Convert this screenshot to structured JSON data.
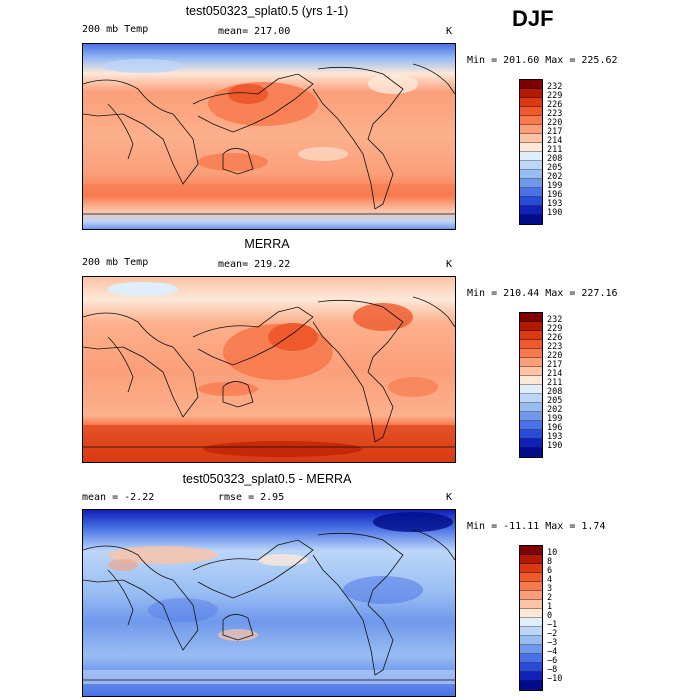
{
  "season": "DJF",
  "panels": [
    {
      "title": "test050323_splat0.5 (yrs 1-1)",
      "left_label": "200 mb Temp",
      "mid_label": "mean= 217.00",
      "units": "K",
      "minmax": "Min = 201.60 Max = 225.62",
      "colorbar": {
        "labels": [
          "232",
          "229",
          "226",
          "223",
          "220",
          "217",
          "214",
          "211",
          "208",
          "205",
          "202",
          "199",
          "196",
          "193",
          "190"
        ],
        "colors": [
          "#7f0000",
          "#b21a00",
          "#d93a12",
          "#ee5a2e",
          "#f77a4e",
          "#fb9f7a",
          "#fcc3a6",
          "#fde8d8",
          "#dfeefc",
          "#bcd6f8",
          "#98bdf3",
          "#7098ec",
          "#4a72e6",
          "#2a4bd8",
          "#1020b8",
          "#000c8a"
        ]
      }
    },
    {
      "title": "MERRA",
      "left_label": "200 mb Temp",
      "mid_label": "mean= 219.22",
      "units": "K",
      "minmax": "Min = 210.44 Max = 227.16",
      "colorbar": {
        "labels": [
          "232",
          "229",
          "226",
          "223",
          "220",
          "217",
          "214",
          "211",
          "208",
          "205",
          "202",
          "199",
          "196",
          "193",
          "190"
        ],
        "colors": [
          "#7f0000",
          "#b21a00",
          "#d93a12",
          "#ee5a2e",
          "#f77a4e",
          "#fb9f7a",
          "#fcc3a6",
          "#fde8d8",
          "#dfeefc",
          "#bcd6f8",
          "#98bdf3",
          "#7098ec",
          "#4a72e6",
          "#2a4bd8",
          "#1020b8",
          "#000c8a"
        ]
      }
    },
    {
      "title": "test050323_splat0.5 - MERRA",
      "left_label": "mean = -2.22",
      "mid_label": "rmse = 2.95",
      "units": "K",
      "minmax": "Min = -11.11 Max = 1.74",
      "colorbar": {
        "labels": [
          "10",
          "8",
          "6",
          "4",
          "3",
          "2",
          "1",
          "0",
          "−1",
          "−2",
          "−3",
          "−4",
          "−6",
          "−8",
          "−10"
        ],
        "colors": [
          "#7f0000",
          "#b21a00",
          "#d93a12",
          "#ee5a2e",
          "#f77a4e",
          "#fb9f7a",
          "#fcc3a6",
          "#fde8d8",
          "#dfeefc",
          "#bcd6f8",
          "#98bdf3",
          "#7098ec",
          "#4a72e6",
          "#2a4bd8",
          "#1020b8",
          "#000c8a"
        ]
      }
    }
  ],
  "chart_data": [
    {
      "type": "heatmap",
      "title": "test050323_splat0.5 (yrs 1-1)",
      "variable": "200 mb Temp",
      "units": "K",
      "season": "DJF",
      "mean": 217.0,
      "min": 201.6,
      "max": 225.62,
      "contour_levels": [
        190,
        193,
        196,
        199,
        202,
        205,
        208,
        211,
        214,
        217,
        220,
        223,
        226,
        229,
        232
      ]
    },
    {
      "type": "heatmap",
      "title": "MERRA",
      "variable": "200 mb Temp",
      "units": "K",
      "season": "DJF",
      "mean": 219.22,
      "min": 210.44,
      "max": 227.16,
      "contour_levels": [
        190,
        193,
        196,
        199,
        202,
        205,
        208,
        211,
        214,
        217,
        220,
        223,
        226,
        229,
        232
      ]
    },
    {
      "type": "heatmap",
      "title": "test050323_splat0.5 - MERRA",
      "units": "K",
      "season": "DJF",
      "mean": -2.22,
      "rmse": 2.95,
      "min": -11.11,
      "max": 1.74,
      "contour_levels": [
        -10,
        -8,
        -6,
        -4,
        -3,
        -2,
        -1,
        0,
        1,
        2,
        3,
        4,
        6,
        8,
        10
      ]
    }
  ]
}
